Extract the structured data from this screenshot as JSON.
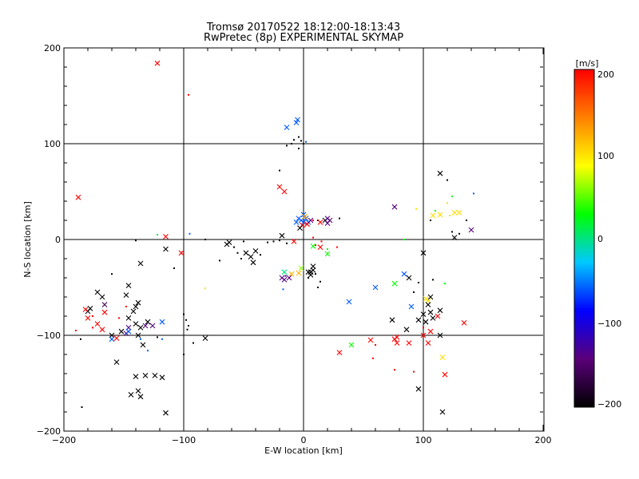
{
  "chart_data": {
    "type": "scatter",
    "title": "Tromsø 20170522 18:12:00-18:13:43",
    "subtitle": "RwPretec (8p) EXPERIMENTAL SKYMAP",
    "xlabel": "E-W location [km]",
    "ylabel": "N-S location [km]",
    "xlim": [
      -200,
      200
    ],
    "ylim": [
      -200,
      200
    ],
    "xticks": [
      "−200",
      "−100",
      "0",
      "100",
      "200"
    ],
    "yticks": [
      "200",
      "100",
      "0",
      "−100",
      "−200"
    ],
    "grid": "lines at x=-100,0,100 and y=-100,0,100",
    "colorbar": {
      "unit": "[m/s]",
      "min": -200,
      "max": 200,
      "ticks": [
        "200",
        "100",
        "0",
        "−100",
        "−200"
      ],
      "stops": [
        "#000000",
        "#5a007a",
        "#0000ff",
        "#00c8ff",
        "#00ff00",
        "#ffff00",
        "#ff8000",
        "#ff0000"
      ]
    },
    "points": [
      {
        "x": -122,
        "y": 184,
        "v": 200,
        "m": "x"
      },
      {
        "x": -96,
        "y": 151,
        "v": 200,
        "m": "d"
      },
      {
        "x": -188,
        "y": 44,
        "v": 200,
        "m": "x"
      },
      {
        "x": -115,
        "y": 3,
        "v": 200,
        "m": "x"
      },
      {
        "x": -102,
        "y": -14,
        "v": 200,
        "m": "x"
      },
      {
        "x": -122,
        "y": 5,
        "v": 10,
        "m": "d"
      },
      {
        "x": -95,
        "y": 6,
        "v": -60,
        "m": "d"
      },
      {
        "x": -115,
        "y": -10,
        "v": -200,
        "m": "x"
      },
      {
        "x": -108,
        "y": -30,
        "v": -200,
        "m": "d"
      },
      {
        "x": -136,
        "y": -25,
        "v": -200,
        "m": "x"
      },
      {
        "x": -140,
        "y": -1,
        "v": -200,
        "m": "d"
      },
      {
        "x": -160,
        "y": -36,
        "v": -200,
        "m": "d"
      },
      {
        "x": -146,
        "y": -48,
        "v": -200,
        "m": "x"
      },
      {
        "x": -148,
        "y": -58,
        "v": -200,
        "m": "x"
      },
      {
        "x": -168,
        "y": -60,
        "v": -200,
        "m": "x"
      },
      {
        "x": -172,
        "y": -55,
        "v": -200,
        "m": "x"
      },
      {
        "x": -166,
        "y": -68,
        "v": -160,
        "m": "x"
      },
      {
        "x": -178,
        "y": -72,
        "v": -200,
        "m": "x"
      },
      {
        "x": -180,
        "y": -75,
        "v": -200,
        "m": "x"
      },
      {
        "x": -182,
        "y": -73,
        "v": 200,
        "m": "x"
      },
      {
        "x": -176,
        "y": -80,
        "v": 200,
        "m": "d"
      },
      {
        "x": -166,
        "y": -76,
        "v": 200,
        "m": "x"
      },
      {
        "x": -180,
        "y": -82,
        "v": 200,
        "m": "x"
      },
      {
        "x": -172,
        "y": -88,
        "v": 200,
        "m": "x"
      },
      {
        "x": -168,
        "y": -94,
        "v": 200,
        "m": "x"
      },
      {
        "x": -176,
        "y": -92,
        "v": 200,
        "m": "d"
      },
      {
        "x": -190,
        "y": -95,
        "v": 200,
        "m": "d"
      },
      {
        "x": -186,
        "y": -104,
        "v": -200,
        "m": "d"
      },
      {
        "x": -140,
        "y": -70,
        "v": -200,
        "m": "x"
      },
      {
        "x": -138,
        "y": -66,
        "v": -200,
        "m": "x"
      },
      {
        "x": -142,
        "y": -75,
        "v": -200,
        "m": "x"
      },
      {
        "x": -146,
        "y": -82,
        "v": -200,
        "m": "x"
      },
      {
        "x": -140,
        "y": -88,
        "v": -200,
        "m": "x"
      },
      {
        "x": -136,
        "y": -92,
        "v": -200,
        "m": "x"
      },
      {
        "x": -130,
        "y": -86,
        "v": -200,
        "m": "x"
      },
      {
        "x": -132,
        "y": -90,
        "v": -140,
        "m": "x"
      },
      {
        "x": -126,
        "y": -90,
        "v": -140,
        "m": "x"
      },
      {
        "x": -146,
        "y": -92,
        "v": -140,
        "m": "x"
      },
      {
        "x": -148,
        "y": -98,
        "v": -140,
        "m": "x"
      },
      {
        "x": -146,
        "y": -96,
        "v": -60,
        "m": "x"
      },
      {
        "x": -148,
        "y": -70,
        "v": 200,
        "m": "d"
      },
      {
        "x": -154,
        "y": -82,
        "v": 200,
        "m": "d"
      },
      {
        "x": -160,
        "y": -100,
        "v": -200,
        "m": "x"
      },
      {
        "x": -152,
        "y": -96,
        "v": -200,
        "m": "x"
      },
      {
        "x": -156,
        "y": -103,
        "v": 200,
        "m": "x"
      },
      {
        "x": -160,
        "y": -104,
        "v": -60,
        "m": "x"
      },
      {
        "x": -138,
        "y": -100,
        "v": -200,
        "m": "x"
      },
      {
        "x": -134,
        "y": -110,
        "v": -200,
        "m": "x"
      },
      {
        "x": -136,
        "y": -104,
        "v": -60,
        "m": "d"
      },
      {
        "x": -130,
        "y": -116,
        "v": -60,
        "m": "d"
      },
      {
        "x": -118,
        "y": -86,
        "v": -60,
        "m": "x"
      },
      {
        "x": -122,
        "y": -102,
        "v": -200,
        "m": "d"
      },
      {
        "x": -118,
        "y": -104,
        "v": -60,
        "m": "d"
      },
      {
        "x": -156,
        "y": -128,
        "v": -200,
        "m": "x"
      },
      {
        "x": -140,
        "y": -143,
        "v": -200,
        "m": "x"
      },
      {
        "x": -132,
        "y": -142,
        "v": -200,
        "m": "x"
      },
      {
        "x": -124,
        "y": -142,
        "v": -200,
        "m": "x"
      },
      {
        "x": -118,
        "y": -144,
        "v": -200,
        "m": "x"
      },
      {
        "x": -144,
        "y": -162,
        "v": -200,
        "m": "x"
      },
      {
        "x": -138,
        "y": -158,
        "v": -200,
        "m": "x"
      },
      {
        "x": -136,
        "y": -164,
        "v": -200,
        "m": "x"
      },
      {
        "x": -115,
        "y": -181,
        "v": -200,
        "m": "x"
      },
      {
        "x": -185,
        "y": -175,
        "v": -200,
        "m": "d"
      },
      {
        "x": -100,
        "y": -78,
        "v": -200,
        "m": "d"
      },
      {
        "x": -98,
        "y": -84,
        "v": -200,
        "m": "d"
      },
      {
        "x": -96,
        "y": -90,
        "v": -200,
        "m": "d"
      },
      {
        "x": -97,
        "y": -94,
        "v": -200,
        "m": "d"
      },
      {
        "x": -92,
        "y": -108,
        "v": -200,
        "m": "d"
      },
      {
        "x": -100,
        "y": -120,
        "v": -200,
        "m": "d"
      },
      {
        "x": -82,
        "y": -103,
        "v": -200,
        "m": "x"
      },
      {
        "x": -82,
        "y": -51,
        "v": 100,
        "m": "d"
      },
      {
        "x": -82,
        "y": 0,
        "v": -200,
        "m": "d"
      },
      {
        "x": -64,
        "y": -5,
        "v": -200,
        "m": "x"
      },
      {
        "x": -62,
        "y": -3,
        "v": -200,
        "m": "x"
      },
      {
        "x": -58,
        "y": -8,
        "v": -200,
        "m": "d"
      },
      {
        "x": -55,
        "y": -14,
        "v": -200,
        "m": "d"
      },
      {
        "x": -50,
        "y": -2,
        "v": -200,
        "m": "d"
      },
      {
        "x": -48,
        "y": -14,
        "v": -200,
        "m": "x"
      },
      {
        "x": -44,
        "y": -18,
        "v": -200,
        "m": "x"
      },
      {
        "x": -40,
        "y": -12,
        "v": -200,
        "m": "x"
      },
      {
        "x": -36,
        "y": -16,
        "v": -200,
        "m": "d"
      },
      {
        "x": -42,
        "y": -24,
        "v": -200,
        "m": "x"
      },
      {
        "x": -52,
        "y": -20,
        "v": -200,
        "m": "d"
      },
      {
        "x": -30,
        "y": -3,
        "v": -200,
        "m": "d"
      },
      {
        "x": -25,
        "y": -2,
        "v": -200,
        "m": "d"
      },
      {
        "x": -20,
        "y": -1,
        "v": -200,
        "m": "d"
      },
      {
        "x": -18,
        "y": 4,
        "v": -200,
        "m": "x"
      },
      {
        "x": -14,
        "y": -4,
        "v": -200,
        "m": "d"
      },
      {
        "x": -70,
        "y": -22,
        "v": -200,
        "m": "d"
      },
      {
        "x": -20,
        "y": 55,
        "v": 200,
        "m": "x"
      },
      {
        "x": -16,
        "y": 50,
        "v": 200,
        "m": "x"
      },
      {
        "x": -20,
        "y": 72,
        "v": -200,
        "m": "d"
      },
      {
        "x": -14,
        "y": 98,
        "v": -200,
        "m": "d"
      },
      {
        "x": -10,
        "y": 100,
        "v": -200,
        "m": "d"
      },
      {
        "x": -8,
        "y": 104,
        "v": -200,
        "m": "d"
      },
      {
        "x": -4,
        "y": 107,
        "v": -200,
        "m": "d"
      },
      {
        "x": -2,
        "y": 103,
        "v": -200,
        "m": "d"
      },
      {
        "x": 0,
        "y": 100,
        "v": -200,
        "m": "d"
      },
      {
        "x": -4,
        "y": 95,
        "v": -200,
        "m": "d"
      },
      {
        "x": 2,
        "y": 102,
        "v": -60,
        "m": "d"
      },
      {
        "x": -5,
        "y": 125,
        "v": -60,
        "m": "x"
      },
      {
        "x": -6,
        "y": 122,
        "v": -60,
        "m": "x"
      },
      {
        "x": -14,
        "y": 117,
        "v": -60,
        "m": "x"
      },
      {
        "x": -4,
        "y": 22,
        "v": -60,
        "m": "x"
      },
      {
        "x": -2,
        "y": 20,
        "v": -60,
        "m": "x"
      },
      {
        "x": 0,
        "y": 18,
        "v": -60,
        "m": "x"
      },
      {
        "x": 2,
        "y": 22,
        "v": -60,
        "m": "x"
      },
      {
        "x": 4,
        "y": 18,
        "v": -60,
        "m": "x"
      },
      {
        "x": -6,
        "y": 18,
        "v": -60,
        "m": "x"
      },
      {
        "x": 0,
        "y": 26,
        "v": -60,
        "m": "x"
      },
      {
        "x": 1,
        "y": 24,
        "v": 130,
        "m": "x"
      },
      {
        "x": 3,
        "y": 16,
        "v": 200,
        "m": "x"
      },
      {
        "x": -1,
        "y": 15,
        "v": 200,
        "m": "x"
      },
      {
        "x": -3,
        "y": 12,
        "v": -200,
        "m": "x"
      },
      {
        "x": 6,
        "y": 20,
        "v": -140,
        "m": "x"
      },
      {
        "x": 8,
        "y": 20,
        "v": 200,
        "m": "d"
      },
      {
        "x": 12,
        "y": 20,
        "v": -200,
        "m": "d"
      },
      {
        "x": 14,
        "y": 18,
        "v": 200,
        "m": "x"
      },
      {
        "x": 18,
        "y": 20,
        "v": -200,
        "m": "x"
      },
      {
        "x": 20,
        "y": 22,
        "v": -140,
        "m": "x"
      },
      {
        "x": 22,
        "y": 20,
        "v": -140,
        "m": "x"
      },
      {
        "x": 20,
        "y": 17,
        "v": -140,
        "m": "x"
      },
      {
        "x": 30,
        "y": 22,
        "v": -200,
        "m": "d"
      },
      {
        "x": -8,
        "y": -2,
        "v": 200,
        "m": "x"
      },
      {
        "x": 8,
        "y": 2,
        "v": 200,
        "m": "d"
      },
      {
        "x": 15,
        "y": -2,
        "v": 200,
        "m": "d"
      },
      {
        "x": 10,
        "y": -6,
        "v": 200,
        "m": "d"
      },
      {
        "x": 20,
        "y": -10,
        "v": 30,
        "m": "d"
      },
      {
        "x": 20,
        "y": -15,
        "v": 30,
        "m": "x"
      },
      {
        "x": 8,
        "y": -7,
        "v": 30,
        "m": "x"
      },
      {
        "x": 14,
        "y": -8,
        "v": 200,
        "m": "x"
      },
      {
        "x": 28,
        "y": -8,
        "v": 200,
        "m": "d"
      },
      {
        "x": -16,
        "y": -34,
        "v": 0,
        "m": "x"
      },
      {
        "x": -18,
        "y": -40,
        "v": -140,
        "m": "x"
      },
      {
        "x": -16,
        "y": -42,
        "v": -140,
        "m": "x"
      },
      {
        "x": -15,
        "y": -38,
        "v": -140,
        "m": "d"
      },
      {
        "x": -12,
        "y": -40,
        "v": -140,
        "m": "x"
      },
      {
        "x": -17,
        "y": -52,
        "v": -60,
        "m": "d"
      },
      {
        "x": -10,
        "y": -36,
        "v": 120,
        "m": "x"
      },
      {
        "x": -4,
        "y": -35,
        "v": 120,
        "m": "x"
      },
      {
        "x": -2,
        "y": -30,
        "v": 60,
        "m": "x"
      },
      {
        "x": 4,
        "y": -34,
        "v": -200,
        "m": "x"
      },
      {
        "x": 6,
        "y": -34,
        "v": -200,
        "m": "x"
      },
      {
        "x": 8,
        "y": -28,
        "v": -200,
        "m": "x"
      },
      {
        "x": 8,
        "y": -32,
        "v": -200,
        "m": "x"
      },
      {
        "x": 6,
        "y": -37,
        "v": -200,
        "m": "x"
      },
      {
        "x": 10,
        "y": -36,
        "v": -200,
        "m": "d"
      },
      {
        "x": 14,
        "y": -44,
        "v": -200,
        "m": "d"
      },
      {
        "x": 12,
        "y": -50,
        "v": -200,
        "m": "d"
      },
      {
        "x": 4,
        "y": -40,
        "v": -200,
        "m": "d"
      },
      {
        "x": 38,
        "y": -65,
        "v": -60,
        "m": "x"
      },
      {
        "x": 40,
        "y": -110,
        "v": 30,
        "m": "x"
      },
      {
        "x": 30,
        "y": -118,
        "v": 200,
        "m": "x"
      },
      {
        "x": 56,
        "y": -105,
        "v": 200,
        "m": "x"
      },
      {
        "x": 60,
        "y": -110,
        "v": 200,
        "m": "d"
      },
      {
        "x": 58,
        "y": -124,
        "v": 200,
        "m": "d"
      },
      {
        "x": 60,
        "y": -50,
        "v": -60,
        "m": "x"
      },
      {
        "x": 76,
        "y": -46,
        "v": 30,
        "m": "x"
      },
      {
        "x": 74,
        "y": -84,
        "v": -200,
        "m": "x"
      },
      {
        "x": 76,
        "y": -104,
        "v": 200,
        "m": "x"
      },
      {
        "x": 78,
        "y": -102,
        "v": 200,
        "m": "x"
      },
      {
        "x": 78,
        "y": -108,
        "v": 200,
        "m": "x"
      },
      {
        "x": 76,
        "y": -136,
        "v": 200,
        "m": "d"
      },
      {
        "x": 84,
        "y": -36,
        "v": -60,
        "m": "x"
      },
      {
        "x": 88,
        "y": -40,
        "v": -200,
        "m": "x"
      },
      {
        "x": 86,
        "y": -94,
        "v": -200,
        "m": "x"
      },
      {
        "x": 90,
        "y": -70,
        "v": -60,
        "m": "x"
      },
      {
        "x": 92,
        "y": -55,
        "v": -200,
        "m": "d"
      },
      {
        "x": 96,
        "y": -45,
        "v": -200,
        "m": "d"
      },
      {
        "x": 88,
        "y": -108,
        "v": 200,
        "m": "x"
      },
      {
        "x": 92,
        "y": -138,
        "v": 200,
        "m": "d"
      },
      {
        "x": 96,
        "y": -156,
        "v": -200,
        "m": "x"
      },
      {
        "x": 100,
        "y": -14,
        "v": -200,
        "m": "x"
      },
      {
        "x": 100,
        "y": -78,
        "v": -200,
        "m": "x"
      },
      {
        "x": 102,
        "y": -86,
        "v": -200,
        "m": "x"
      },
      {
        "x": 96,
        "y": -84,
        "v": -200,
        "m": "x"
      },
      {
        "x": 104,
        "y": -64,
        "v": 100,
        "m": "x"
      },
      {
        "x": 102,
        "y": -62,
        "v": 100,
        "m": "x"
      },
      {
        "x": 106,
        "y": -60,
        "v": -200,
        "m": "x"
      },
      {
        "x": 104,
        "y": -68,
        "v": -200,
        "m": "x"
      },
      {
        "x": 106,
        "y": -76,
        "v": -200,
        "m": "x"
      },
      {
        "x": 108,
        "y": -82,
        "v": -200,
        "m": "x"
      },
      {
        "x": 100,
        "y": -100,
        "v": 200,
        "m": "x"
      },
      {
        "x": 104,
        "y": -108,
        "v": 200,
        "m": "x"
      },
      {
        "x": 106,
        "y": -96,
        "v": 200,
        "m": "x"
      },
      {
        "x": 100,
        "y": -92,
        "v": 200,
        "m": "d"
      },
      {
        "x": 114,
        "y": -74,
        "v": -200,
        "m": "x"
      },
      {
        "x": 112,
        "y": -80,
        "v": 200,
        "m": "x"
      },
      {
        "x": 114,
        "y": -100,
        "v": -200,
        "m": "x"
      },
      {
        "x": 116,
        "y": -123,
        "v": 100,
        "m": "x"
      },
      {
        "x": 118,
        "y": -141,
        "v": 200,
        "m": "x"
      },
      {
        "x": 116,
        "y": -180,
        "v": -200,
        "m": "x"
      },
      {
        "x": 108,
        "y": -42,
        "v": -200,
        "m": "d"
      },
      {
        "x": 118,
        "y": -46,
        "v": 30,
        "m": "d"
      },
      {
        "x": 134,
        "y": -87,
        "v": 200,
        "m": "x"
      },
      {
        "x": 108,
        "y": 25,
        "v": 100,
        "m": "x"
      },
      {
        "x": 114,
        "y": 26,
        "v": 100,
        "m": "x"
      },
      {
        "x": 120,
        "y": 38,
        "v": 100,
        "m": "d"
      },
      {
        "x": 124,
        "y": 45,
        "v": 30,
        "m": "d"
      },
      {
        "x": 110,
        "y": 30,
        "v": 30,
        "m": "d"
      },
      {
        "x": 106,
        "y": 20,
        "v": -200,
        "m": "d"
      },
      {
        "x": 114,
        "y": 69,
        "v": -200,
        "m": "x"
      },
      {
        "x": 120,
        "y": 62,
        "v": -200,
        "m": "d"
      },
      {
        "x": 122,
        "y": 25,
        "v": 100,
        "m": "d"
      },
      {
        "x": 126,
        "y": 28,
        "v": 100,
        "m": "x"
      },
      {
        "x": 130,
        "y": 28,
        "v": 100,
        "m": "x"
      },
      {
        "x": 126,
        "y": 2,
        "v": -200,
        "m": "x"
      },
      {
        "x": 124,
        "y": 8,
        "v": -200,
        "m": "d"
      },
      {
        "x": 130,
        "y": 6,
        "v": -200,
        "m": "d"
      },
      {
        "x": 140,
        "y": 10,
        "v": -140,
        "m": "x"
      },
      {
        "x": 142,
        "y": 48,
        "v": -60,
        "m": "d"
      },
      {
        "x": 76,
        "y": 34,
        "v": -140,
        "m": "x"
      },
      {
        "x": 94,
        "y": 32,
        "v": 100,
        "m": "d"
      },
      {
        "x": 84,
        "y": 0,
        "v": 30,
        "m": "d"
      },
      {
        "x": 136,
        "y": 20,
        "v": -200,
        "m": "d"
      }
    ]
  }
}
